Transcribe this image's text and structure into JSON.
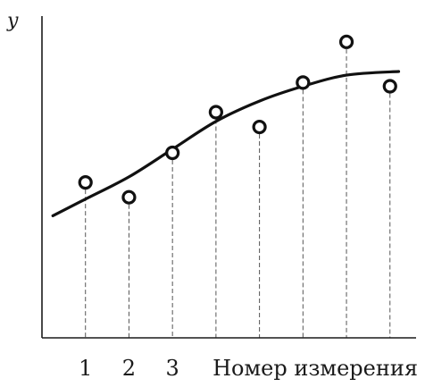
{
  "chart_data": {
    "type": "scatter",
    "ylabel": "y",
    "xlabel": "Номер измерения",
    "x_tick_labels": [
      "1",
      "2",
      "3"
    ],
    "grid": false,
    "legend": "none",
    "x": [
      1,
      2,
      3,
      4,
      5,
      6,
      7,
      8
    ],
    "points": [
      {
        "x": 1,
        "y": 4.2
      },
      {
        "x": 2,
        "y": 3.8
      },
      {
        "x": 3,
        "y": 5.0
      },
      {
        "x": 4,
        "y": 6.1
      },
      {
        "x": 5,
        "y": 5.7
      },
      {
        "x": 6,
        "y": 6.9
      },
      {
        "x": 7,
        "y": 8.0
      },
      {
        "x": 8,
        "y": 6.8
      }
    ],
    "trend_curve": [
      {
        "x": 0.25,
        "y": 3.3
      },
      {
        "x": 1,
        "y": 3.75
      },
      {
        "x": 2,
        "y": 4.35
      },
      {
        "x": 3,
        "y": 5.1
      },
      {
        "x": 4,
        "y": 5.85
      },
      {
        "x": 5,
        "y": 6.4
      },
      {
        "x": 6,
        "y": 6.8
      },
      {
        "x": 7,
        "y": 7.1
      },
      {
        "x": 8.2,
        "y": 7.2
      }
    ],
    "xlim": [
      0,
      8.6
    ],
    "ylim": [
      0,
      8.6
    ],
    "colors": {
      "axis": "#1a1a1a",
      "curve": "#111111",
      "marker": "#111111",
      "guides": "#555555"
    }
  }
}
